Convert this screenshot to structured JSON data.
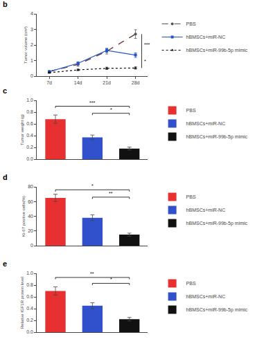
{
  "chart_data": [
    {
      "type": "line",
      "title": "b",
      "x": [
        7,
        14,
        21,
        28
      ],
      "xlim": [
        4,
        31
      ],
      "xticks": [
        {
          "value": 7,
          "label": "7d"
        },
        {
          "value": 14,
          "label": "14d"
        },
        {
          "value": 21,
          "label": "21d"
        },
        {
          "value": 28,
          "label": "28d"
        }
      ],
      "ylabel": "Tumor volume (cm³)",
      "ylim": [
        0,
        4
      ],
      "yticks": [
        0,
        1,
        2,
        3,
        4
      ],
      "grid": false,
      "legend": "right",
      "series": [
        {
          "color": "red",
          "line_style": "dashed",
          "values": [
            0.3,
            0.75,
            1.6,
            2.7
          ]
        },
        {
          "name": "PBS",
          "color": "#555555",
          "line_style": "dashed",
          "marker": "circle",
          "values": [
            0.3,
            0.75,
            1.6,
            2.7
          ],
          "errors": [
            0.05,
            0.12,
            0.18,
            0.28
          ]
        },
        {
          "name": "hBMSCs+miR-NC",
          "color": "#2255cc",
          "line_style": "solid",
          "marker": "square",
          "values": [
            0.28,
            0.82,
            1.65,
            1.35
          ],
          "errors": [
            0.05,
            0.1,
            0.12,
            0.15
          ]
        },
        {
          "name": "hBMSCs+miR-99b-5p mimic",
          "color": "#111111",
          "line_style": "dotted",
          "marker": "triangle-up",
          "values": [
            0.22,
            0.4,
            0.5,
            0.52
          ],
          "errors": [
            0.04,
            0.05,
            0.07,
            0.07
          ]
        }
      ],
      "annotations": [
        {
          "x": 29.5,
          "y1": 2.7,
          "y2": 1.35,
          "text": "***"
        },
        {
          "x": 29.5,
          "y1": 1.35,
          "y2": 0.52,
          "text": "*"
        }
      ]
    },
    {
      "type": "bar",
      "title": "c",
      "categories": [
        "PBS",
        "hBMSCs+miR-NC",
        "hBMSCs+miR-99b-5p mimic"
      ],
      "values": [
        0.68,
        0.37,
        0.18
      ],
      "errors": [
        0.07,
        0.04,
        0.025
      ],
      "colors": [
        "#e83030",
        "#3050cc",
        "#111111"
      ],
      "ylabel": "Tumor weight (g)",
      "ylim": [
        0.0,
        1.0
      ],
      "yticks": [
        {
          "value": 0.0,
          "label": "0.0"
        },
        0.2,
        0.4,
        0.6,
        0.8,
        {
          "value": 1.0,
          "label": "1.0"
        }
      ],
      "tick_labels": "y",
      "grid": false,
      "legend": "right",
      "annotations": [
        {
          "x1": 0,
          "x2": 2,
          "y": 0.9,
          "text": "***"
        },
        {
          "x1": 1,
          "x2": 2,
          "y": 0.78,
          "text": "*"
        }
      ]
    },
    {
      "type": "bar",
      "title": "d",
      "categories": [
        "PBS",
        "hBMSCs+miR-NC",
        "hBMSCs+miR-99b-5p mimic"
      ],
      "values": [
        65,
        38,
        15
      ],
      "errors": [
        5,
        4,
        2
      ],
      "colors": [
        "#e83030",
        "#3050cc",
        "#111111"
      ],
      "ylabel": "Ki-67 positive cells(%)",
      "ylim": [
        0,
        80
      ],
      "yticks": [
        0,
        20,
        40,
        60,
        80
      ],
      "tick_labels": "y",
      "grid": false,
      "legend": "right",
      "annotations": [
        {
          "x1": 0,
          "x2": 2,
          "y": 76,
          "text": "*"
        },
        {
          "x1": 1,
          "x2": 2,
          "y": 66,
          "text": "**"
        }
      ]
    },
    {
      "type": "bar",
      "title": "e",
      "categories": [
        "PBS",
        "hBMSCs+miR-NC",
        "hBMSCs+miR-99b-5p mimic"
      ],
      "values": [
        0.7,
        0.45,
        0.22
      ],
      "errors": [
        0.07,
        0.05,
        0.03
      ],
      "colors": [
        "#e83030",
        "#3050cc",
        "#111111"
      ],
      "ylabel": "Relative IGF1R protein level",
      "ylim": [
        0.0,
        1.0
      ],
      "yticks": [
        {
          "value": 0.0,
          "label": "0.0"
        },
        0.2,
        0.4,
        0.6,
        0.8,
        {
          "value": 1.0,
          "label": "1.0"
        }
      ],
      "tick_labels": "y",
      "grid": false,
      "legend": "right",
      "annotations": [
        {
          "x1": 0,
          "x2": 2,
          "y": 0.93,
          "text": "**"
        },
        {
          "x1": 1,
          "x2": 2,
          "y": 0.83,
          "text": "*"
        }
      ]
    }
  ]
}
